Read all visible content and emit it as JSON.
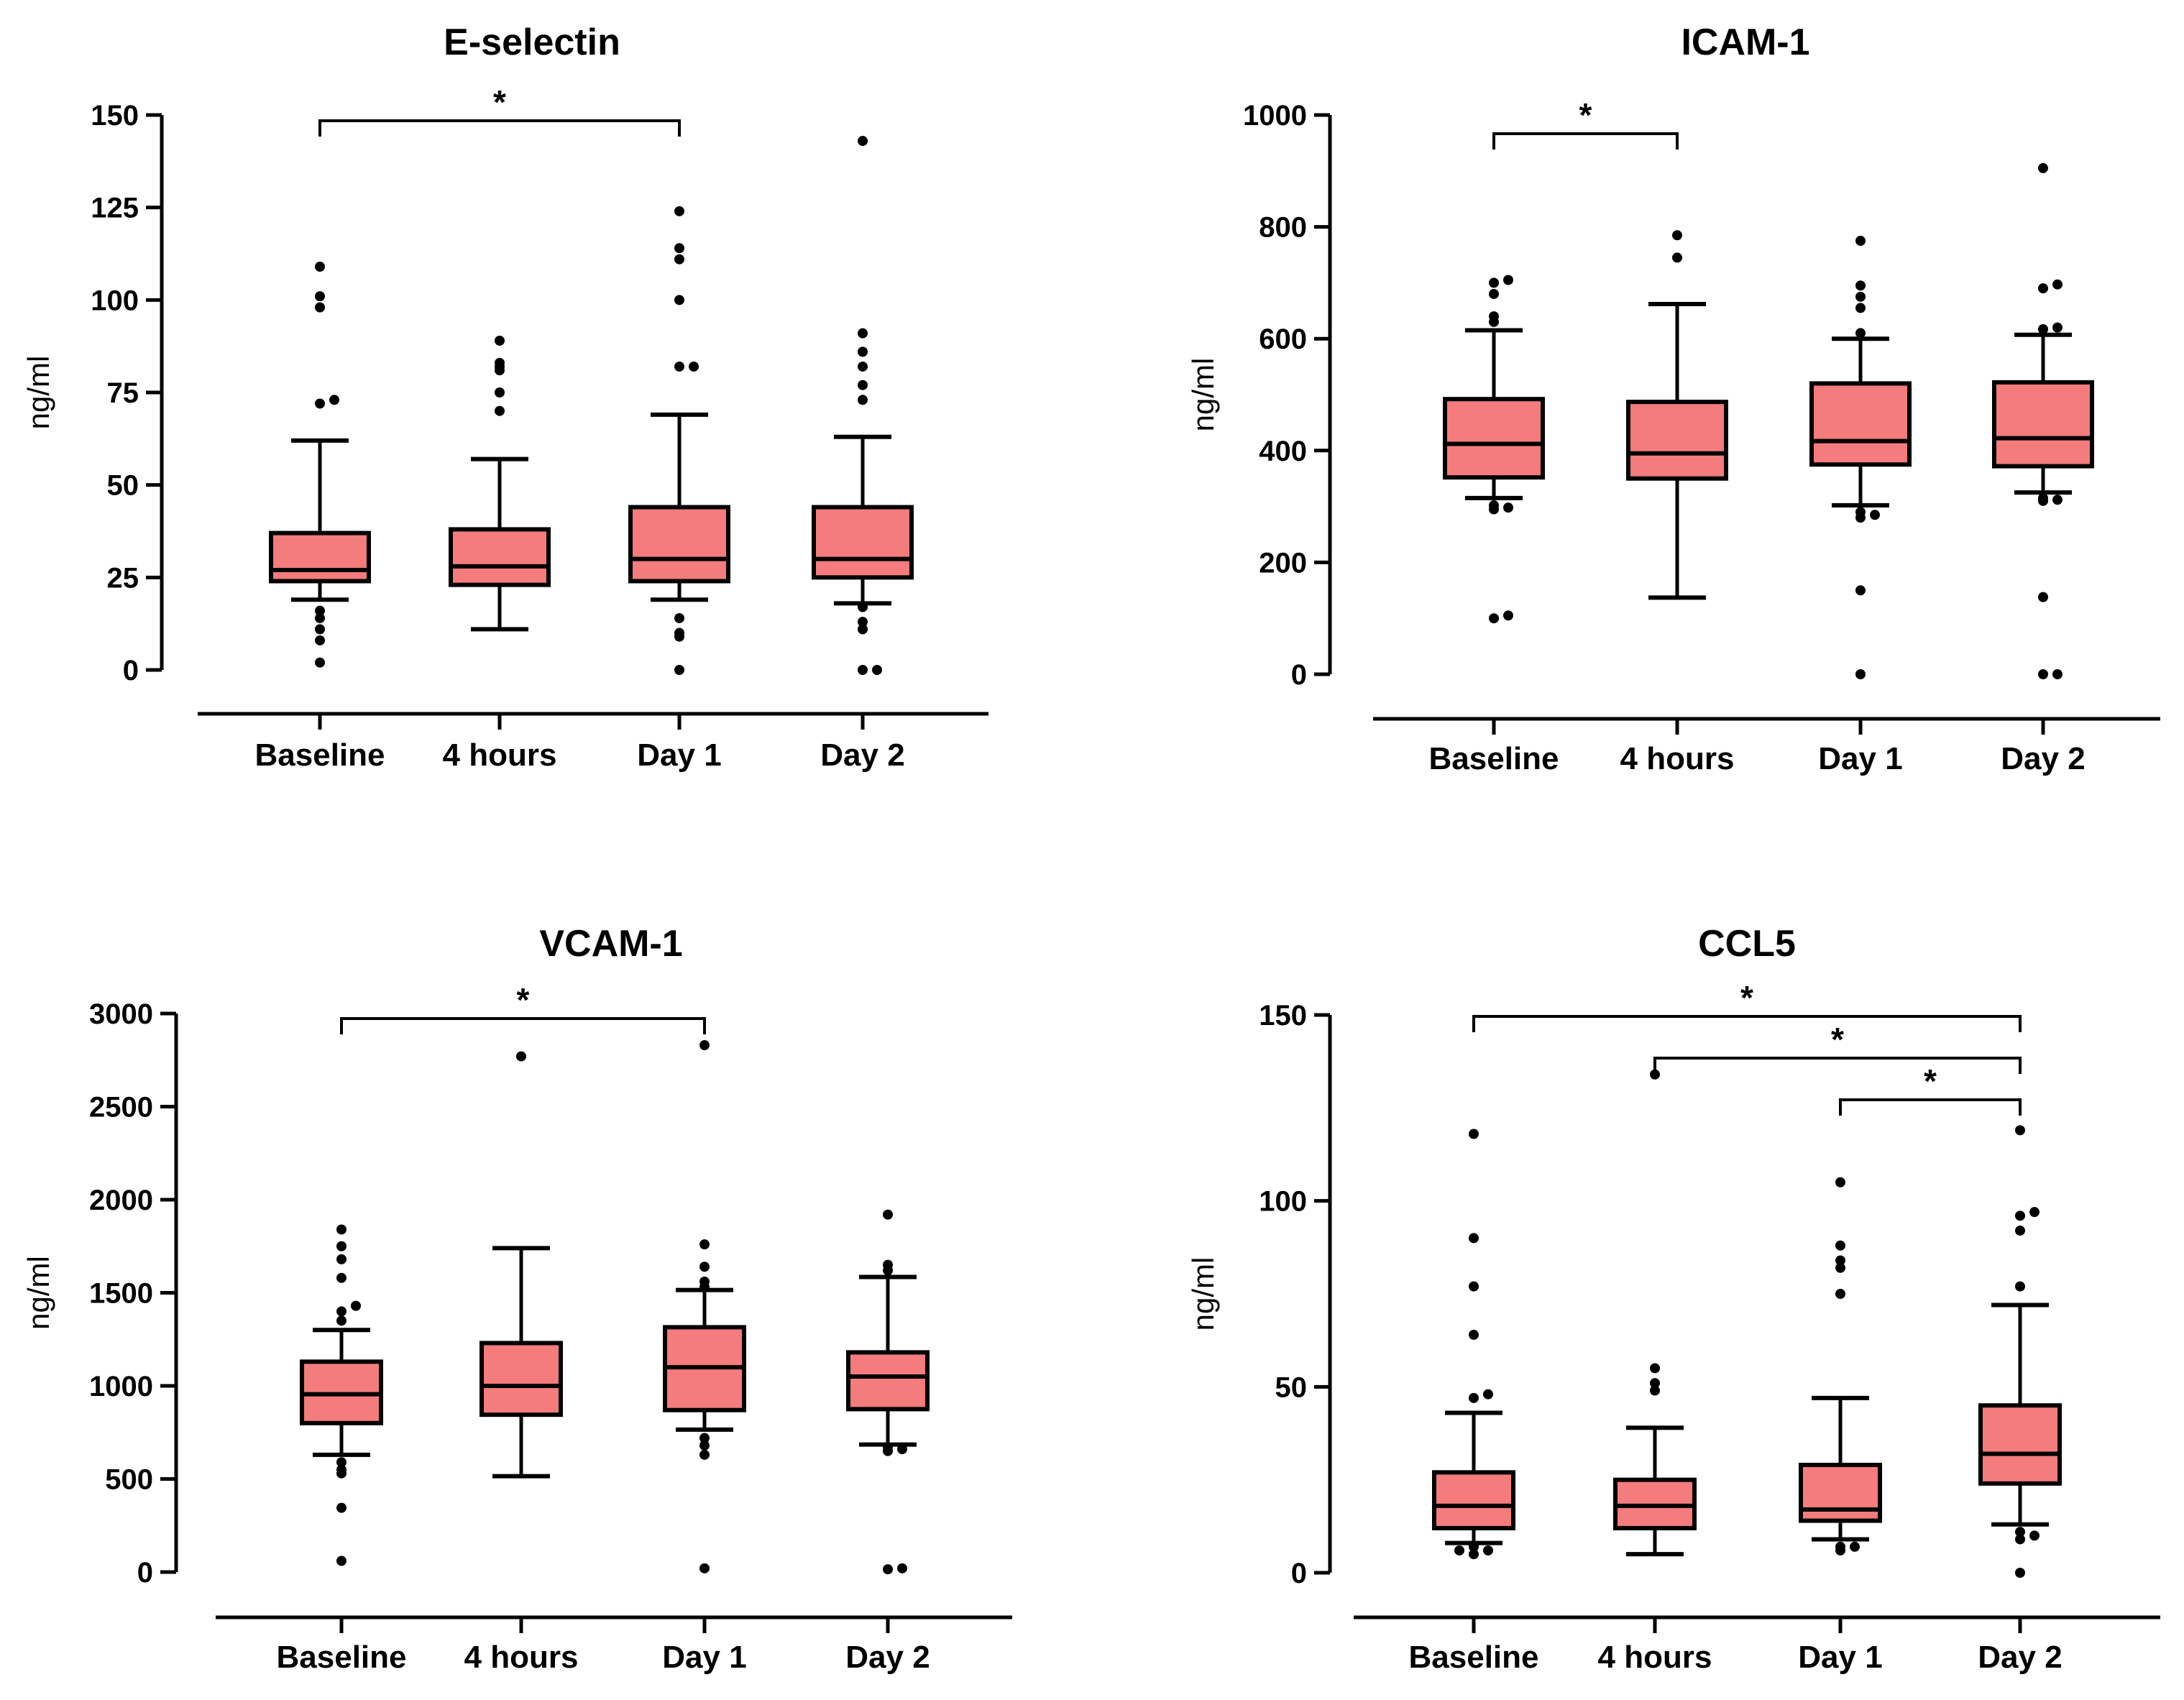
{
  "colors": {
    "box_fill": "#f47c7c",
    "stroke": "#000000",
    "background": "#ffffff"
  },
  "chart_data": [
    {
      "type": "box",
      "title": "E-selectin",
      "ylabel": "ng/ml",
      "ylim": [
        0,
        150
      ],
      "yticks": [
        0,
        25,
        50,
        75,
        100,
        125,
        150
      ],
      "categories": [
        "Baseline",
        "4 hours",
        "Day 1",
        "Day 2"
      ],
      "boxes": [
        {
          "whisker_low": 19,
          "q1": 24,
          "median": 27,
          "q3": 37,
          "whisker_high": 62,
          "outliers": [
            2,
            8,
            11,
            14,
            16,
            72,
            73,
            98,
            101,
            109
          ]
        },
        {
          "whisker_low": 11,
          "q1": 23,
          "median": 28,
          "q3": 38,
          "whisker_high": 57,
          "outliers": [
            70,
            75,
            81,
            82,
            83,
            89
          ]
        },
        {
          "whisker_low": 19,
          "q1": 24,
          "median": 30,
          "q3": 44,
          "whisker_high": 69,
          "outliers": [
            0,
            9,
            10,
            14,
            82,
            82,
            100,
            111,
            114,
            124
          ]
        },
        {
          "whisker_low": 18,
          "q1": 25,
          "median": 30,
          "q3": 44,
          "whisker_high": 63,
          "outliers": [
            0,
            0,
            11,
            13,
            17,
            73,
            77,
            82,
            86,
            91,
            143
          ]
        }
      ],
      "significance": [
        {
          "from": 0,
          "to": 2,
          "label": "*",
          "level": 0
        }
      ]
    },
    {
      "type": "box",
      "title": "ICAM-1",
      "ylabel": "ng/ml",
      "ylim": [
        0,
        1000
      ],
      "yticks": [
        0,
        200,
        400,
        600,
        800,
        1000
      ],
      "categories": [
        "Baseline",
        "4 hours",
        "Day 1",
        "Day 2"
      ],
      "boxes": [
        {
          "whisker_low": 315,
          "q1": 352,
          "median": 412,
          "q3": 492,
          "whisker_high": 615,
          "outliers": [
            100,
            105,
            295,
            298,
            302,
            630,
            640,
            680,
            700,
            705
          ]
        },
        {
          "whisker_low": 137,
          "q1": 350,
          "median": 395,
          "q3": 487,
          "whisker_high": 662,
          "outliers": [
            745,
            785
          ]
        },
        {
          "whisker_low": 302,
          "q1": 375,
          "median": 417,
          "q3": 520,
          "whisker_high": 600,
          "outliers": [
            0,
            150,
            280,
            285,
            290,
            610,
            655,
            675,
            695,
            775
          ]
        },
        {
          "whisker_low": 325,
          "q1": 372,
          "median": 422,
          "q3": 522,
          "whisker_high": 607,
          "outliers": [
            0,
            0,
            138,
            310,
            312,
            315,
            617,
            620,
            690,
            697,
            905
          ]
        }
      ],
      "significance": [
        {
          "from": 0,
          "to": 1,
          "label": "*",
          "level": 0
        }
      ]
    },
    {
      "type": "box",
      "title": "VCAM-1",
      "ylabel": "ng/ml",
      "ylim": [
        0,
        3000
      ],
      "yticks": [
        0,
        500,
        1000,
        1500,
        2000,
        2500,
        3000
      ],
      "categories": [
        "Baseline",
        "4 hours",
        "Day 1",
        "Day 2"
      ],
      "boxes": [
        {
          "whisker_low": 630,
          "q1": 800,
          "median": 955,
          "q3": 1130,
          "whisker_high": 1300,
          "outliers": [
            60,
            345,
            530,
            550,
            590,
            1350,
            1400,
            1430,
            1580,
            1680,
            1750,
            1840
          ]
        },
        {
          "whisker_low": 515,
          "q1": 845,
          "median": 1000,
          "q3": 1230,
          "whisker_high": 1740,
          "outliers": [
            2770
          ]
        },
        {
          "whisker_low": 765,
          "q1": 870,
          "median": 1100,
          "q3": 1315,
          "whisker_high": 1515,
          "outliers": [
            20,
            630,
            680,
            720,
            1530,
            1560,
            1640,
            1760,
            2830
          ]
        },
        {
          "whisker_low": 685,
          "q1": 875,
          "median": 1050,
          "q3": 1180,
          "whisker_high": 1585,
          "outliers": [
            15,
            20,
            650,
            660,
            670,
            1620,
            1650,
            1920
          ]
        }
      ],
      "significance": [
        {
          "from": 0,
          "to": 2,
          "label": "*",
          "level": 0
        }
      ]
    },
    {
      "type": "box",
      "title": "CCL5",
      "ylabel": "ng/ml",
      "ylim": [
        0,
        150
      ],
      "yticks": [
        0,
        50,
        100,
        150
      ],
      "categories": [
        "Baseline",
        "4 hours",
        "Day 1",
        "Day 2"
      ],
      "boxes": [
        {
          "whisker_low": 8,
          "q1": 12,
          "median": 18,
          "q3": 27,
          "whisker_high": 43,
          "outliers": [
            5,
            6,
            6,
            7,
            47,
            48,
            64,
            77,
            90,
            118
          ]
        },
        {
          "whisker_low": 5,
          "q1": 12,
          "median": 18,
          "q3": 25,
          "whisker_high": 39,
          "outliers": [
            49,
            51,
            55,
            134
          ]
        },
        {
          "whisker_low": 9,
          "q1": 14,
          "median": 17,
          "q3": 29,
          "whisker_high": 47,
          "outliers": [
            6,
            7,
            7,
            75,
            82,
            84,
            88,
            105
          ]
        },
        {
          "whisker_low": 13,
          "q1": 24,
          "median": 32,
          "q3": 45,
          "whisker_high": 72,
          "outliers": [
            0,
            9,
            10,
            11,
            77,
            92,
            96,
            97,
            119
          ]
        }
      ],
      "significance": [
        {
          "from": 0,
          "to": 3,
          "label": "*",
          "level": 0
        },
        {
          "from": 1,
          "to": 3,
          "label": "*",
          "level": 1
        },
        {
          "from": 2,
          "to": 3,
          "label": "*",
          "level": 2
        }
      ]
    }
  ]
}
